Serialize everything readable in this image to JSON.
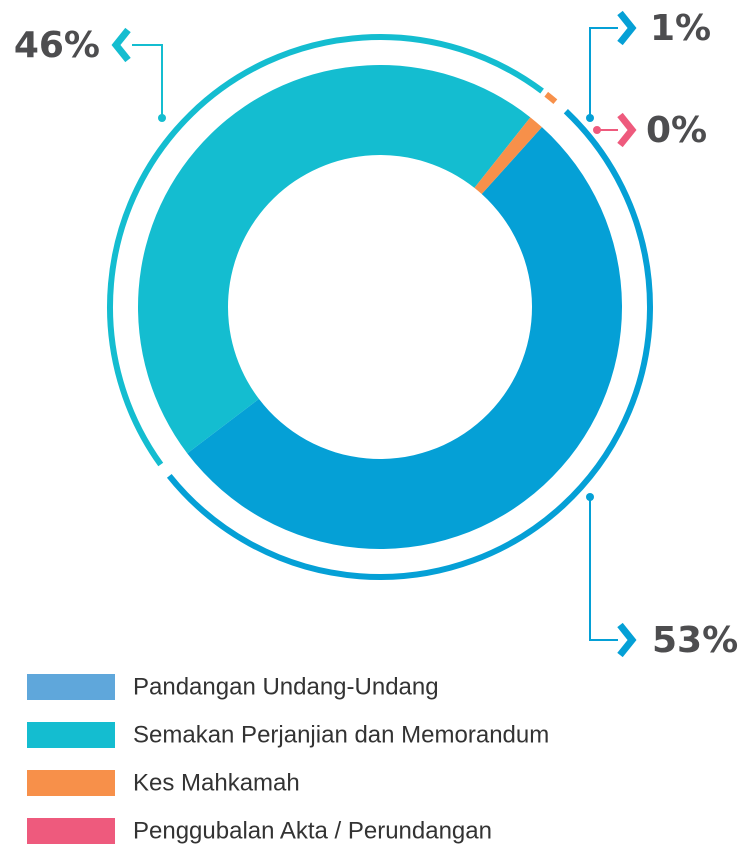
{
  "chart_data": {
    "type": "donut",
    "categories": [
      "Pandangan Undang-Undang",
      "Semakan Perjanjian dan Memorandum",
      "Kes Mahkamah",
      "Penggubalan Akta / Perundangan"
    ],
    "values": [
      53,
      46,
      1,
      0
    ],
    "value_labels": [
      "53%",
      "46%",
      "1%",
      "0%"
    ],
    "colors": [
      "#05a0d6",
      "#14bdd0",
      "#f7904a",
      "#ee5a7d"
    ],
    "legend_colors": [
      "#5fa7db",
      "#14bdd0",
      "#f7904a",
      "#ee5a7d"
    ]
  }
}
